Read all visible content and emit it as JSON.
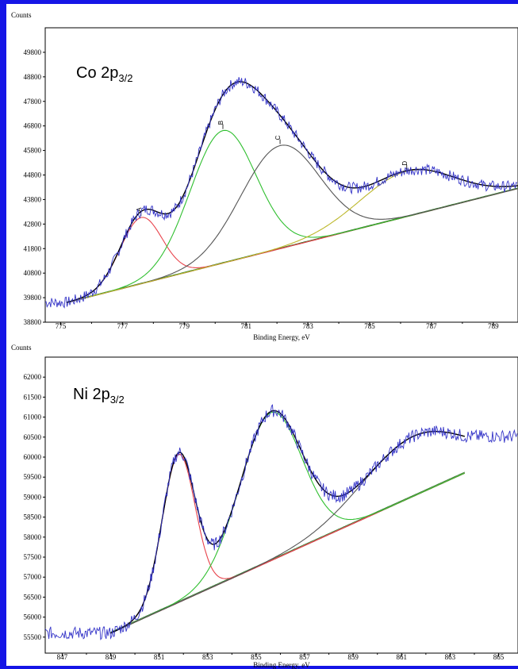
{
  "chart_data": [
    {
      "type": "line",
      "title": "Co 2p",
      "title_subscript": "3/2",
      "ylabel": "Counts",
      "xlabel": "Binding Energy, eV",
      "xlim": [
        774.5,
        789.8
      ],
      "ylim": [
        38800,
        50800
      ],
      "x_ticks": [
        775,
        777,
        779,
        781,
        783,
        785,
        787,
        789
      ],
      "y_ticks": [
        38800,
        39800,
        40800,
        41800,
        42800,
        43800,
        44800,
        45800,
        46800,
        47800,
        48800,
        49800
      ],
      "background": {
        "x": [
          775.2,
          789.8
        ],
        "y": [
          39600,
          44250
        ]
      },
      "raw_noise_amplitude": 230,
      "peaks": [
        {
          "label": "A",
          "center": 777.6,
          "height": 2700,
          "fwhm": 1.6,
          "color": "#e8434b"
        },
        {
          "label": "B",
          "center": 780.25,
          "height": 5400,
          "fwhm": 2.5,
          "color": "#2fbf2f"
        },
        {
          "label": "C",
          "center": 782.1,
          "height": 4200,
          "fwhm": 3.0,
          "color": "#555555"
        },
        {
          "label": "D",
          "center": 786.2,
          "height": 1850,
          "fwhm": 3.6,
          "color": "#bdb82c"
        }
      ],
      "series": [
        {
          "name": "raw data",
          "color": "#3535c8"
        },
        {
          "name": "envelope fit",
          "color": "#000000"
        },
        {
          "name": "baseline",
          "color": "#8b2a2a"
        }
      ]
    },
    {
      "type": "line",
      "title": "Ni 2p",
      "title_subscript": "3/2",
      "ylabel": "Counts",
      "xlabel": "Binding Energy, eV",
      "xlim": [
        846.3,
        865.8
      ],
      "ylim": [
        55100,
        62500
      ],
      "x_ticks": [
        847,
        849,
        851,
        853,
        855,
        857,
        859,
        861,
        863,
        865
      ],
      "y_ticks": [
        55500,
        56000,
        56500,
        57000,
        57500,
        58000,
        58500,
        59000,
        59500,
        60000,
        60500,
        61000,
        61500,
        62000
      ],
      "background": {
        "x": [
          849.0,
          863.6
        ],
        "y": [
          55600,
          59600
        ]
      },
      "raw_noise_amplitude": 160,
      "peaks": [
        {
          "label": "",
          "center": 851.8,
          "height": 3700,
          "fwhm": 1.6,
          "color": "#e8434b"
        },
        {
          "label": "",
          "center": 855.6,
          "height": 3700,
          "fwhm": 3.0,
          "color": "#2fbf2f"
        },
        {
          "label": "",
          "center": 861.5,
          "height": 1500,
          "fwhm": 5.0,
          "color": "#555555"
        }
      ],
      "series": [
        {
          "name": "raw data",
          "color": "#3535c8"
        },
        {
          "name": "envelope fit",
          "color": "#000000"
        },
        {
          "name": "baseline",
          "color": "#8b2a2a"
        }
      ]
    }
  ]
}
